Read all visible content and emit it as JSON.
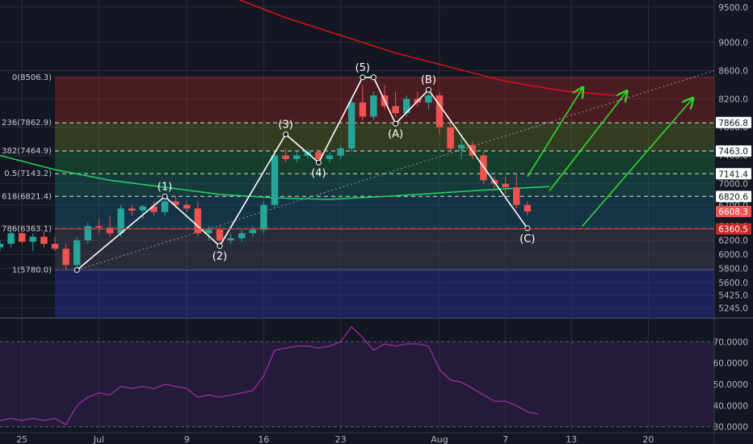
{
  "colors": {
    "background": "#131722",
    "grid": "#2a2e39",
    "up": "#26a69a",
    "down": "#ef5350",
    "wave_line": "#ffffff",
    "ma_red": "#e0101e",
    "ma_green": "#1ed760",
    "arrows": "#2ddc2d",
    "rsi_line": "#9a2fa0",
    "axis_text": "#b2b5be"
  },
  "chart_data": {
    "type": "candlestick",
    "title": "",
    "xlabel": "",
    "ylabel": "",
    "ylim": [
      5100,
      9600
    ],
    "y_ticks": [
      "9500.0",
      "9000.0",
      "8600.0",
      "8200.0",
      "7800.0",
      "7400.0",
      "7000.0",
      "6700.0",
      "6400.0",
      "6200.0",
      "6000.0",
      "5800.0",
      "5600.0",
      "5425.0",
      "5245.0"
    ],
    "y_tick_values": [
      9500,
      9000,
      8600,
      8200,
      7800,
      7400,
      7000,
      6700,
      6400,
      6200,
      6000,
      5800,
      5600,
      5425,
      5245
    ],
    "x_ticks": [
      {
        "label": "25",
        "day": -6
      },
      {
        "label": "Jul",
        "day": 1
      },
      {
        "label": "9",
        "day": 9
      },
      {
        "label": "16",
        "day": 16
      },
      {
        "label": "23",
        "day": 23
      },
      {
        "label": "Aug",
        "day": 32
      },
      {
        "label": "7",
        "day": 38
      },
      {
        "label": "13",
        "day": 44
      },
      {
        "label": "20",
        "day": 51
      }
    ],
    "x_range_days": [
      -8,
      57
    ],
    "candles": [
      {
        "day": -8,
        "o": 6100,
        "h": 6200,
        "l": 6050,
        "c": 6150
      },
      {
        "day": -7,
        "o": 6150,
        "h": 6350,
        "l": 6100,
        "c": 6300
      },
      {
        "day": -6,
        "o": 6300,
        "h": 6350,
        "l": 6150,
        "c": 6180
      },
      {
        "day": -5,
        "o": 6180,
        "h": 6300,
        "l": 6050,
        "c": 6250
      },
      {
        "day": -4,
        "o": 6250,
        "h": 6320,
        "l": 6100,
        "c": 6150
      },
      {
        "day": -3,
        "o": 6150,
        "h": 6250,
        "l": 6050,
        "c": 6080
      },
      {
        "day": -2,
        "o": 6080,
        "h": 6150,
        "l": 5780,
        "c": 5850
      },
      {
        "day": -1,
        "o": 5850,
        "h": 6250,
        "l": 5800,
        "c": 6200
      },
      {
        "day": 0,
        "o": 6200,
        "h": 6450,
        "l": 6150,
        "c": 6400
      },
      {
        "day": 1,
        "o": 6400,
        "h": 6500,
        "l": 6300,
        "c": 6380
      },
      {
        "day": 2,
        "o": 6380,
        "h": 6550,
        "l": 6250,
        "c": 6300
      },
      {
        "day": 3,
        "o": 6300,
        "h": 6700,
        "l": 6250,
        "c": 6650
      },
      {
        "day": 4,
        "o": 6650,
        "h": 6700,
        "l": 6550,
        "c": 6620
      },
      {
        "day": 5,
        "o": 6620,
        "h": 6700,
        "l": 6500,
        "c": 6680
      },
      {
        "day": 6,
        "o": 6680,
        "h": 6750,
        "l": 6550,
        "c": 6600
      },
      {
        "day": 7,
        "o": 6600,
        "h": 6780,
        "l": 6550,
        "c": 6750
      },
      {
        "day": 8,
        "o": 6750,
        "h": 6820,
        "l": 6650,
        "c": 6700
      },
      {
        "day": 9,
        "o": 6700,
        "h": 6760,
        "l": 6600,
        "c": 6650
      },
      {
        "day": 10,
        "o": 6650,
        "h": 6750,
        "l": 6250,
        "c": 6300
      },
      {
        "day": 11,
        "o": 6300,
        "h": 6400,
        "l": 6200,
        "c": 6350
      },
      {
        "day": 12,
        "o": 6350,
        "h": 6400,
        "l": 6150,
        "c": 6200
      },
      {
        "day": 13,
        "o": 6200,
        "h": 6300,
        "l": 6150,
        "c": 6230
      },
      {
        "day": 14,
        "o": 6230,
        "h": 6350,
        "l": 6180,
        "c": 6300
      },
      {
        "day": 15,
        "o": 6300,
        "h": 6400,
        "l": 6250,
        "c": 6350
      },
      {
        "day": 16,
        "o": 6350,
        "h": 6750,
        "l": 6300,
        "c": 6700
      },
      {
        "day": 17,
        "o": 6700,
        "h": 7450,
        "l": 6650,
        "c": 7400
      },
      {
        "day": 18,
        "o": 7400,
        "h": 7500,
        "l": 7300,
        "c": 7350
      },
      {
        "day": 19,
        "o": 7350,
        "h": 7450,
        "l": 7300,
        "c": 7400
      },
      {
        "day": 20,
        "o": 7400,
        "h": 7500,
        "l": 7350,
        "c": 7450
      },
      {
        "day": 21,
        "o": 7450,
        "h": 7480,
        "l": 7300,
        "c": 7350
      },
      {
        "day": 22,
        "o": 7350,
        "h": 7450,
        "l": 7300,
        "c": 7400
      },
      {
        "day": 23,
        "o": 7400,
        "h": 7550,
        "l": 7350,
        "c": 7500
      },
      {
        "day": 24,
        "o": 7500,
        "h": 8200,
        "l": 7450,
        "c": 8150
      },
      {
        "day": 25,
        "o": 8150,
        "h": 8400,
        "l": 7900,
        "c": 7950
      },
      {
        "day": 26,
        "o": 7950,
        "h": 8300,
        "l": 7900,
        "c": 8250
      },
      {
        "day": 27,
        "o": 8250,
        "h": 8400,
        "l": 8050,
        "c": 8100
      },
      {
        "day": 28,
        "o": 8100,
        "h": 8300,
        "l": 7950,
        "c": 8000
      },
      {
        "day": 29,
        "o": 8000,
        "h": 8250,
        "l": 7950,
        "c": 8200
      },
      {
        "day": 30,
        "o": 8200,
        "h": 8300,
        "l": 8100,
        "c": 8150
      },
      {
        "day": 31,
        "o": 8150,
        "h": 8350,
        "l": 8050,
        "c": 8250
      },
      {
        "day": 32,
        "o": 8250,
        "h": 8300,
        "l": 7700,
        "c": 7800
      },
      {
        "day": 33,
        "o": 7800,
        "h": 7900,
        "l": 7450,
        "c": 7500
      },
      {
        "day": 34,
        "o": 7500,
        "h": 7650,
        "l": 7350,
        "c": 7550
      },
      {
        "day": 35,
        "o": 7550,
        "h": 7600,
        "l": 7350,
        "c": 7400
      },
      {
        "day": 36,
        "o": 7400,
        "h": 7450,
        "l": 7000,
        "c": 7050
      },
      {
        "day": 37,
        "o": 7050,
        "h": 7100,
        "l": 6900,
        "c": 7000
      },
      {
        "day": 38,
        "o": 7000,
        "h": 7100,
        "l": 6850,
        "c": 6950
      },
      {
        "day": 39,
        "o": 6950,
        "h": 7150,
        "l": 6650,
        "c": 6700
      },
      {
        "day": 40,
        "o": 6700,
        "h": 6750,
        "l": 6550,
        "c": 6608
      }
    ],
    "ma_red": [
      [
        13,
        9650
      ],
      [
        18,
        9350
      ],
      [
        23,
        9100
      ],
      [
        28,
        8850
      ],
      [
        33,
        8650
      ],
      [
        38,
        8450
      ],
      [
        43,
        8320
      ],
      [
        48,
        8250
      ]
    ],
    "ma_green": [
      [
        -8,
        7400
      ],
      [
        -3,
        7200
      ],
      [
        2,
        7050
      ],
      [
        7,
        6950
      ],
      [
        12,
        6850
      ],
      [
        17,
        6800
      ],
      [
        22,
        6780
      ],
      [
        27,
        6820
      ],
      [
        32,
        6870
      ],
      [
        37,
        6920
      ],
      [
        42,
        6960
      ]
    ],
    "dotted_trendline": [
      [
        -1,
        5780
      ],
      [
        57,
        8600
      ]
    ],
    "fib_levels": [
      {
        "ratio": "0",
        "label": "0(8506.3)",
        "value": 8506.3
      },
      {
        "ratio": "0.236",
        "label": "236(7862.9)",
        "value": 7862.9
      },
      {
        "ratio": "0.382",
        "label": "382(7464.9)",
        "value": 7464.9
      },
      {
        "ratio": "0.5",
        "label": "0.5(7143.2)",
        "value": 7143.2
      },
      {
        "ratio": "0.618",
        "label": "618(6821.4)",
        "value": 6821.4
      },
      {
        "ratio": "0.786",
        "label": "786(6363.1)",
        "value": 6363.1
      },
      {
        "ratio": "1",
        "label": "1(5780.0)",
        "value": 5780.0
      }
    ],
    "fib_start_day": -3,
    "fib_zone_colors": [
      "rgba(190,40,40,0.32)",
      "rgba(120,140,30,0.32)",
      "rgba(30,130,60,0.35)",
      "rgba(30,120,110,0.35)",
      "rgba(30,100,140,0.35)",
      "rgba(90,90,110,0.30)",
      "rgba(40,50,160,0.45)"
    ],
    "wave_path": [
      {
        "label": "",
        "day": -1,
        "value": 5780
      },
      {
        "label": "(1)",
        "day": 7,
        "value": 6820
      },
      {
        "label": "(2)",
        "day": 12,
        "value": 6120
      },
      {
        "label": "(3)",
        "day": 18,
        "value": 7700
      },
      {
        "label": "(4)",
        "day": 21,
        "value": 7300
      },
      {
        "label": "(5)",
        "day": 25,
        "value": 8506
      },
      {
        "label": "",
        "day": 26,
        "value": 8506
      },
      {
        "label": "(A)",
        "day": 28,
        "value": 7850
      },
      {
        "label": "(B)",
        "day": 31,
        "value": 8330
      },
      {
        "label": "(C)",
        "day": 40,
        "value": 6370
      }
    ],
    "right_price_labels": [
      {
        "text": "7866.8",
        "value": 7866.8,
        "style": "white"
      },
      {
        "text": "7463.0",
        "value": 7463.0,
        "style": "white"
      },
      {
        "text": "7141.4",
        "value": 7141.4,
        "style": "white"
      },
      {
        "text": "6820.6",
        "value": 6820.6,
        "style": "white"
      },
      {
        "text": "6608.3",
        "value": 6608.3,
        "style": "red"
      },
      {
        "text": "6360.5",
        "value": 6360.5,
        "style": "darkred"
      }
    ],
    "support_line_value": 6360.5,
    "arrows": [
      {
        "from": [
          40,
          7100
        ],
        "to": [
          45,
          8350
        ]
      },
      {
        "from": [
          42,
          6900
        ],
        "to": [
          49,
          8300
        ]
      },
      {
        "from": [
          45,
          6400
        ],
        "to": [
          55,
          8200
        ]
      }
    ],
    "rsi": {
      "ylim": [
        28,
        80
      ],
      "ticks": [
        "70.0000",
        "60.0000",
        "50.0000",
        "40.0000",
        "30.0000"
      ],
      "tick_values": [
        70,
        60,
        50,
        40,
        30
      ],
      "band_top": 70,
      "band_bottom": 30,
      "values": [
        [
          -8,
          33
        ],
        [
          -7,
          34
        ],
        [
          -6,
          33
        ],
        [
          -5,
          34
        ],
        [
          -4,
          33
        ],
        [
          -3,
          34
        ],
        [
          -2,
          31
        ],
        [
          -1,
          40
        ],
        [
          0,
          44
        ],
        [
          1,
          46
        ],
        [
          2,
          45
        ],
        [
          3,
          49
        ],
        [
          4,
          48
        ],
        [
          5,
          49
        ],
        [
          6,
          48
        ],
        [
          7,
          50
        ],
        [
          8,
          49
        ],
        [
          9,
          48
        ],
        [
          10,
          44
        ],
        [
          11,
          45
        ],
        [
          12,
          44
        ],
        [
          13,
          45
        ],
        [
          14,
          46
        ],
        [
          15,
          47
        ],
        [
          16,
          54
        ],
        [
          17,
          66
        ],
        [
          18,
          67
        ],
        [
          19,
          68
        ],
        [
          20,
          68
        ],
        [
          21,
          67
        ],
        [
          22,
          68
        ],
        [
          23,
          70
        ],
        [
          24,
          77
        ],
        [
          25,
          72
        ],
        [
          26,
          66
        ],
        [
          27,
          69
        ],
        [
          28,
          68
        ],
        [
          29,
          69
        ],
        [
          30,
          69
        ],
        [
          31,
          68
        ],
        [
          32,
          57
        ],
        [
          33,
          52
        ],
        [
          34,
          51
        ],
        [
          35,
          48
        ],
        [
          36,
          45
        ],
        [
          37,
          42
        ],
        [
          38,
          42
        ],
        [
          39,
          40
        ],
        [
          40,
          37
        ],
        [
          41,
          36
        ]
      ]
    }
  }
}
